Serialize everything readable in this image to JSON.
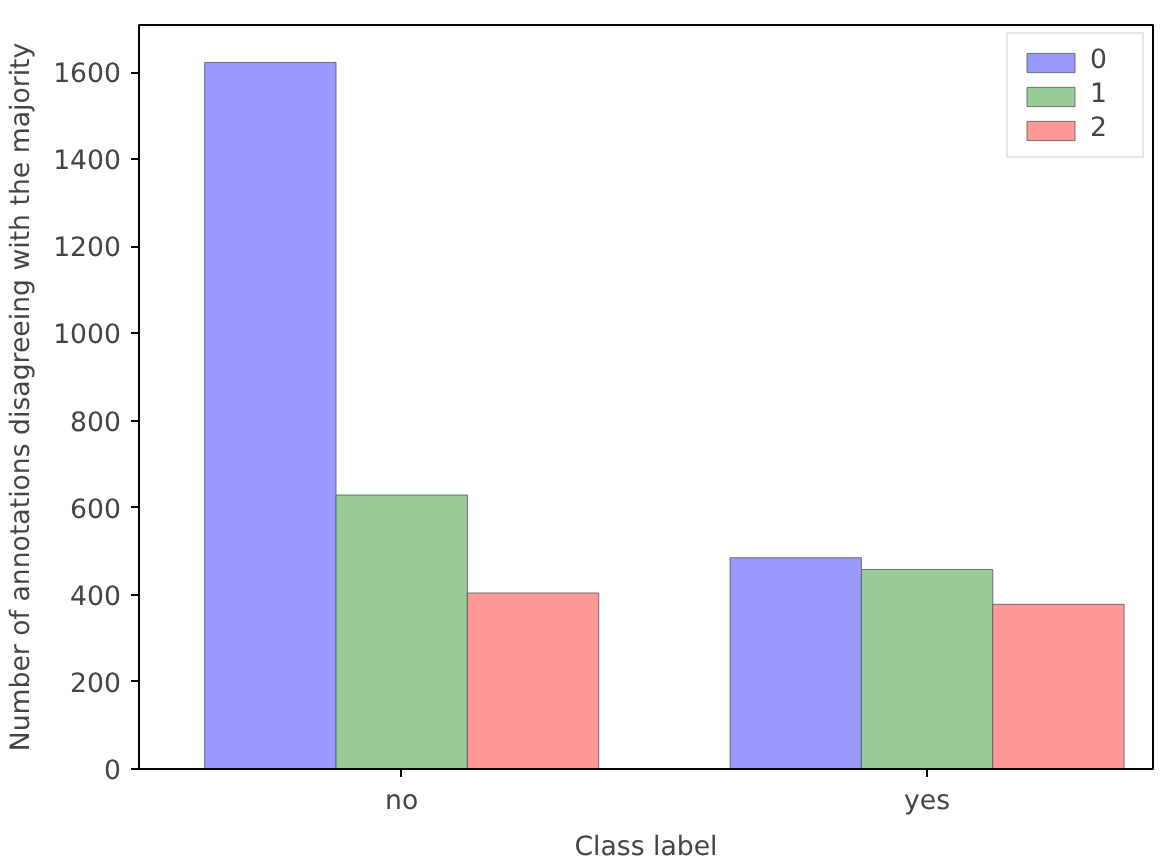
{
  "chart_data": {
    "type": "bar",
    "xlabel": "Class label",
    "ylabel": "Number of annotations disagreeing with the majority",
    "categories": [
      "no",
      "yes"
    ],
    "series": [
      {
        "name": "0",
        "color": "#9999ff",
        "values": [
          1622,
          485
        ]
      },
      {
        "name": "1",
        "color": "#99cc99",
        "values": [
          629,
          458
        ]
      },
      {
        "name": "2",
        "color": "#ff9999",
        "values": [
          404,
          378
        ]
      }
    ],
    "ylim": [
      0,
      1708
    ],
    "yticks": [
      0,
      200,
      400,
      600,
      800,
      1000,
      1200,
      1400,
      1600
    ],
    "grid": false,
    "legend": "top right"
  }
}
